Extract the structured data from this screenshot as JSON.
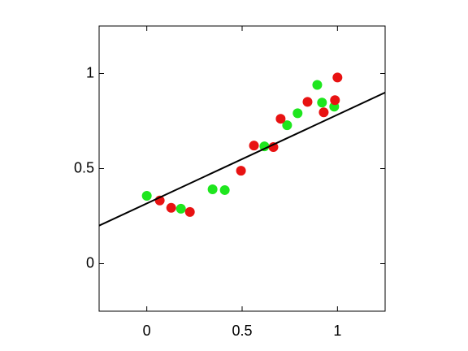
{
  "chart_data": {
    "type": "scatter",
    "xlim": [
      -0.25,
      1.25
    ],
    "ylim": [
      -0.25,
      1.25
    ],
    "xticks": [
      0,
      0.5,
      1
    ],
    "yticks": [
      0,
      0.5,
      1
    ],
    "series": [
      {
        "type": "scatter",
        "color": "#1ee61e",
        "x": [
          0,
          0.179,
          0.345,
          0.409,
          0.617,
          0.736,
          0.791,
          0.894,
          0.919,
          0.983
        ],
        "values": [
          0.357,
          0.289,
          0.391,
          0.387,
          0.617,
          0.728,
          0.791,
          0.94,
          0.847,
          0.826
        ]
      },
      {
        "type": "scatter",
        "color": "#e81212",
        "x": [
          0.068,
          0.128,
          0.226,
          0.494,
          0.562,
          0.664,
          0.702,
          0.843,
          0.928,
          0.987,
          1.0
        ],
        "values": [
          0.332,
          0.294,
          0.272,
          0.489,
          0.621,
          0.613,
          0.762,
          0.851,
          0.796,
          0.86,
          0.979
        ]
      },
      {
        "type": "line",
        "color": "#000000",
        "x": [
          -0.25,
          1.25
        ],
        "values": [
          0.2,
          0.9
        ]
      }
    ]
  }
}
